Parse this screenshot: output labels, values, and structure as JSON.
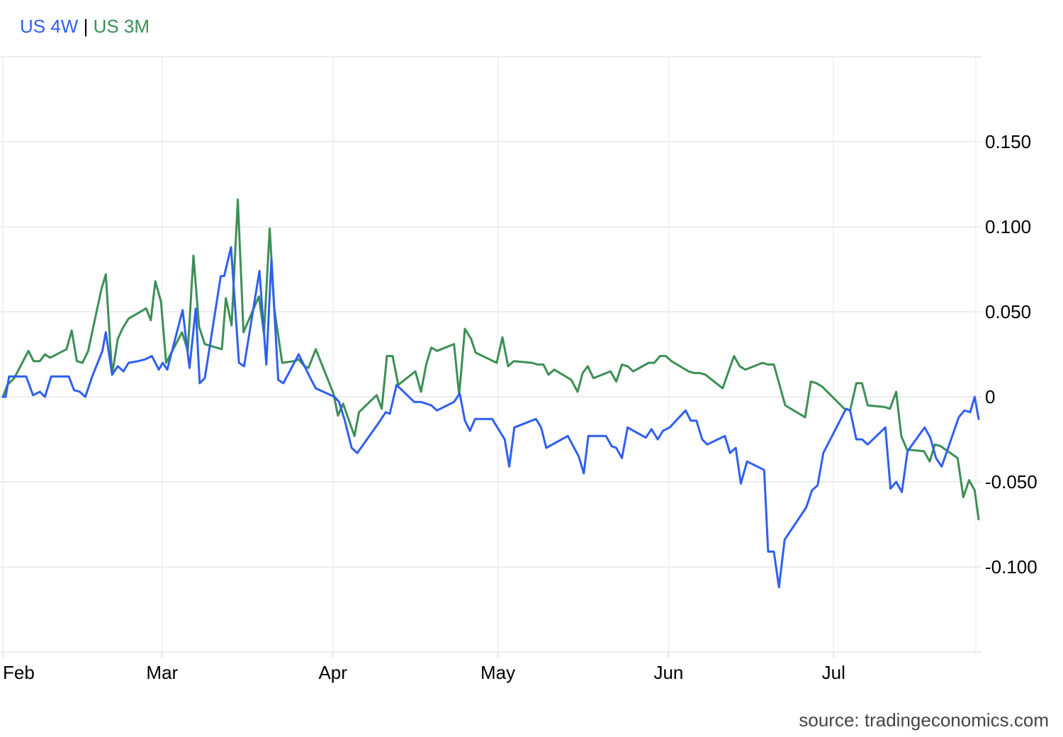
{
  "legend": {
    "separator": "|"
  },
  "source": "source: tradingeconomics.com",
  "chart_data": {
    "type": "line",
    "xlabel": "",
    "ylabel": "",
    "x_tick_labels": [
      "Feb",
      "Mar",
      "Apr",
      "May",
      "Jun",
      "Jul"
    ],
    "x_tick_days": [
      0,
      28,
      58,
      87,
      117,
      146
    ],
    "x_range_days": [
      0,
      171
    ],
    "y_ticks": [
      0.15,
      0.1,
      0.05,
      0,
      -0.05,
      -0.1
    ],
    "y_tick_labels": [
      "0.150",
      "0.100",
      "0.050",
      "0",
      "-0.050",
      "-0.100"
    ],
    "ylim": [
      -0.15,
      0.2
    ],
    "grid": true,
    "y_axis_side": "right",
    "legend_position": "top-left",
    "series": [
      {
        "name": "US 4W",
        "color": "#2f5ff0",
        "points": [
          [
            0,
            0
          ],
          [
            0.5,
            0
          ],
          [
            1.1,
            0.012
          ],
          [
            2.5,
            0.012
          ],
          [
            4.1,
            0.012
          ],
          [
            5.3,
            0.001
          ],
          [
            6.5,
            0.003
          ],
          [
            7.4,
            0
          ],
          [
            8.5,
            0.012
          ],
          [
            10,
            0.012
          ],
          [
            11.6,
            0.012
          ],
          [
            12.5,
            0.004
          ],
          [
            13.5,
            0.003
          ],
          [
            14.5,
            0
          ],
          [
            15.7,
            0.012
          ],
          [
            17.5,
            0.027
          ],
          [
            18.1,
            0.038
          ],
          [
            19.2,
            0.013
          ],
          [
            20.2,
            0.018
          ],
          [
            21.2,
            0.015
          ],
          [
            22.1,
            0.02
          ],
          [
            23.8,
            0.021
          ],
          [
            25,
            0.022
          ],
          [
            26.2,
            0.024
          ],
          [
            27.4,
            0.016
          ],
          [
            28.1,
            0.02
          ],
          [
            28.9,
            0.016
          ],
          [
            31.6,
            0.051
          ],
          [
            32.8,
            0.017
          ],
          [
            33.9,
            0.052
          ],
          [
            34.6,
            0.008
          ],
          [
            35.5,
            0.011
          ],
          [
            38.3,
            0.071
          ],
          [
            38.9,
            0.071
          ],
          [
            40.1,
            0.088
          ],
          [
            41.5,
            0.02
          ],
          [
            42.4,
            0.018
          ],
          [
            45.1,
            0.074
          ],
          [
            46.3,
            0.019
          ],
          [
            47.2,
            0.081
          ],
          [
            48.4,
            0.01
          ],
          [
            49.3,
            0.008
          ],
          [
            52,
            0.025
          ],
          [
            54.2,
            0.01
          ],
          [
            55,
            0.005
          ],
          [
            58.3,
            0
          ],
          [
            59.1,
            -0.003
          ],
          [
            60.1,
            -0.014
          ],
          [
            61.3,
            -0.03
          ],
          [
            62.3,
            -0.033
          ],
          [
            65.7,
            -0.017
          ],
          [
            67.3,
            -0.009
          ],
          [
            68,
            -0.01
          ],
          [
            69.2,
            0.007
          ],
          [
            72.3,
            -0.003
          ],
          [
            73.5,
            -0.003
          ],
          [
            75.3,
            -0.005
          ],
          [
            76.3,
            -0.008
          ],
          [
            79.3,
            -0.003
          ],
          [
            80.3,
            0.002
          ],
          [
            81.2,
            -0.014
          ],
          [
            82.1,
            -0.02
          ],
          [
            83,
            -0.013
          ],
          [
            84.8,
            -0.013
          ],
          [
            86,
            -0.013
          ],
          [
            88.2,
            -0.025
          ],
          [
            89,
            -0.041
          ],
          [
            89.9,
            -0.018
          ],
          [
            93.7,
            -0.013
          ],
          [
            94.6,
            -0.018
          ],
          [
            95.5,
            -0.03
          ],
          [
            99.3,
            -0.023
          ],
          [
            101.2,
            -0.035
          ],
          [
            102.1,
            -0.045
          ],
          [
            102.9,
            -0.023
          ],
          [
            106,
            -0.023
          ],
          [
            107,
            -0.029
          ],
          [
            107.8,
            -0.03
          ],
          [
            108.8,
            -0.036
          ],
          [
            109.8,
            -0.018
          ],
          [
            113,
            -0.024
          ],
          [
            114,
            -0.019
          ],
          [
            115.1,
            -0.025
          ],
          [
            116,
            -0.02
          ],
          [
            117.2,
            -0.018
          ],
          [
            120,
            -0.008
          ],
          [
            120.9,
            -0.014
          ],
          [
            121.9,
            -0.014
          ],
          [
            122.9,
            -0.025
          ],
          [
            123.8,
            -0.028
          ],
          [
            126.9,
            -0.023
          ],
          [
            127.8,
            -0.033
          ],
          [
            128.8,
            -0.03
          ],
          [
            129.7,
            -0.051
          ],
          [
            130.8,
            -0.038
          ],
          [
            133.8,
            -0.043
          ],
          [
            134.5,
            -0.091
          ],
          [
            135.5,
            -0.091
          ],
          [
            136.4,
            -0.112
          ],
          [
            137.4,
            -0.084
          ],
          [
            141.2,
            -0.065
          ],
          [
            142.2,
            -0.055
          ],
          [
            143.2,
            -0.052
          ],
          [
            144.2,
            -0.033
          ],
          [
            148.2,
            -0.007
          ],
          [
            148.9,
            -0.008
          ],
          [
            150,
            -0.025
          ],
          [
            151,
            -0.025
          ],
          [
            152,
            -0.028
          ],
          [
            155.1,
            -0.018
          ],
          [
            156,
            -0.054
          ],
          [
            157,
            -0.05
          ],
          [
            158,
            -0.056
          ],
          [
            159,
            -0.032
          ],
          [
            162,
            -0.018
          ],
          [
            163,
            -0.024
          ],
          [
            164,
            -0.036
          ],
          [
            165,
            -0.041
          ],
          [
            168,
            -0.012
          ],
          [
            169,
            -0.008
          ],
          [
            170,
            -0.009
          ],
          [
            170.8,
            0
          ],
          [
            171.5,
            -0.013
          ]
        ]
      },
      {
        "name": "US 3M",
        "color": "#3c8f55",
        "points": [
          [
            0,
            0
          ],
          [
            0.8,
            0.007
          ],
          [
            2,
            0.011
          ],
          [
            4.5,
            0.027
          ],
          [
            5.4,
            0.021
          ],
          [
            6.5,
            0.021
          ],
          [
            7.4,
            0.025
          ],
          [
            8.3,
            0.023
          ],
          [
            11.2,
            0.028
          ],
          [
            12.1,
            0.039
          ],
          [
            13,
            0.021
          ],
          [
            14,
            0.02
          ],
          [
            15,
            0.027
          ],
          [
            17.3,
            0.063
          ],
          [
            18.1,
            0.072
          ],
          [
            19.2,
            0.013
          ],
          [
            20.2,
            0.034
          ],
          [
            21,
            0.04
          ],
          [
            22.1,
            0.046
          ],
          [
            25.2,
            0.052
          ],
          [
            26,
            0.045
          ],
          [
            26.8,
            0.068
          ],
          [
            27.8,
            0.056
          ],
          [
            28.7,
            0.02
          ],
          [
            31.5,
            0.038
          ],
          [
            32.5,
            0.027
          ],
          [
            33.5,
            0.083
          ],
          [
            34.5,
            0.041
          ],
          [
            35.5,
            0.031
          ],
          [
            38.5,
            0.028
          ],
          [
            39.2,
            0.058
          ],
          [
            40.2,
            0.042
          ],
          [
            41.3,
            0.116
          ],
          [
            42.3,
            0.038
          ],
          [
            45,
            0.059
          ],
          [
            45.9,
            0.037
          ],
          [
            46.9,
            0.099
          ],
          [
            47.7,
            0.052
          ],
          [
            49.1,
            0.02
          ],
          [
            51.2,
            0.021
          ],
          [
            52,
            0.022
          ],
          [
            53,
            0.018
          ],
          [
            53.7,
            0.017
          ],
          [
            55,
            0.028
          ],
          [
            58.1,
            0.002
          ],
          [
            58.9,
            -0.011
          ],
          [
            59.8,
            -0.004
          ],
          [
            61.8,
            -0.023
          ],
          [
            62.6,
            -0.009
          ],
          [
            65.7,
            0.001
          ],
          [
            66.6,
            -0.007
          ],
          [
            67.5,
            0.024
          ],
          [
            68.5,
            0.024
          ],
          [
            69.5,
            0.007
          ],
          [
            72.5,
            0.015
          ],
          [
            73.5,
            0.003
          ],
          [
            74.4,
            0.019
          ],
          [
            75.3,
            0.029
          ],
          [
            76.3,
            0.027
          ],
          [
            79.3,
            0.031
          ],
          [
            80.2,
            0.001
          ],
          [
            81.2,
            0.04
          ],
          [
            82.3,
            0.034
          ],
          [
            83.1,
            0.026
          ],
          [
            86.8,
            0.02
          ],
          [
            87.8,
            0.035
          ],
          [
            88.8,
            0.018
          ],
          [
            89.8,
            0.021
          ],
          [
            93,
            0.02
          ],
          [
            94,
            0.019
          ],
          [
            95,
            0.019
          ],
          [
            95.9,
            0.013
          ],
          [
            96.9,
            0.016
          ],
          [
            99.9,
            0.01
          ],
          [
            101,
            0.003
          ],
          [
            101.9,
            0.014
          ],
          [
            102.8,
            0.018
          ],
          [
            103.8,
            0.011
          ],
          [
            106.8,
            0.015
          ],
          [
            107.8,
            0.009
          ],
          [
            108.8,
            0.019
          ],
          [
            109.8,
            0.018
          ],
          [
            110.8,
            0.015
          ],
          [
            113.5,
            0.02
          ],
          [
            114.5,
            0.02
          ],
          [
            115.5,
            0.024
          ],
          [
            116.5,
            0.024
          ],
          [
            117.5,
            0.021
          ],
          [
            120.5,
            0.015
          ],
          [
            121.5,
            0.014
          ],
          [
            122.5,
            0.014
          ],
          [
            123.5,
            0.013
          ],
          [
            126.5,
            0.005
          ],
          [
            128.5,
            0.024
          ],
          [
            129.5,
            0.018
          ],
          [
            130.5,
            0.016
          ],
          [
            133.5,
            0.02
          ],
          [
            134.5,
            0.019
          ],
          [
            135.5,
            0.019
          ],
          [
            137.5,
            -0.005
          ],
          [
            141,
            -0.012
          ],
          [
            142,
            0.009
          ],
          [
            143,
            0.008
          ],
          [
            144,
            0.006
          ],
          [
            147.9,
            -0.007
          ],
          [
            148.9,
            -0.008
          ],
          [
            150,
            0.008
          ],
          [
            151,
            0.008
          ],
          [
            152,
            -0.005
          ],
          [
            155,
            -0.006
          ],
          [
            155.9,
            -0.007
          ],
          [
            157,
            0.003
          ],
          [
            157.9,
            -0.023
          ],
          [
            158.9,
            -0.031
          ],
          [
            161.9,
            -0.032
          ],
          [
            162.9,
            -0.038
          ],
          [
            163.8,
            -0.028
          ],
          [
            164.8,
            -0.029
          ],
          [
            167.8,
            -0.036
          ],
          [
            168.8,
            -0.059
          ],
          [
            169.8,
            -0.049
          ],
          [
            170.8,
            -0.055
          ],
          [
            171.5,
            -0.072
          ]
        ]
      }
    ]
  }
}
